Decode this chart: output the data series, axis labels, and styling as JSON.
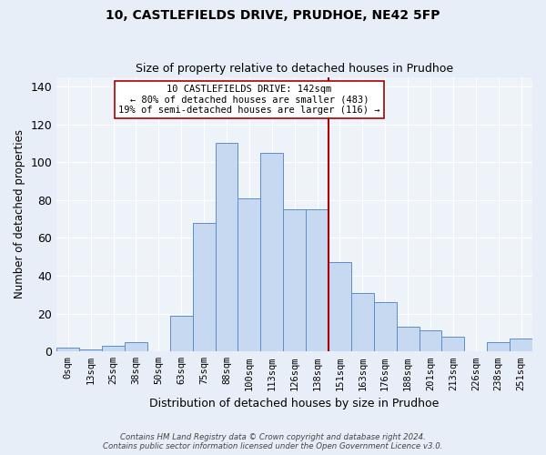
{
  "title": "10, CASTLEFIELDS DRIVE, PRUDHOE, NE42 5FP",
  "subtitle": "Size of property relative to detached houses in Prudhoe",
  "xlabel": "Distribution of detached houses by size in Prudhoe",
  "ylabel": "Number of detached properties",
  "bar_labels": [
    "0sqm",
    "13sqm",
    "25sqm",
    "38sqm",
    "50sqm",
    "63sqm",
    "75sqm",
    "88sqm",
    "100sqm",
    "113sqm",
    "126sqm",
    "138sqm",
    "151sqm",
    "163sqm",
    "176sqm",
    "188sqm",
    "201sqm",
    "213sqm",
    "226sqm",
    "238sqm",
    "251sqm"
  ],
  "bar_values": [
    2,
    1,
    3,
    5,
    0,
    19,
    68,
    110,
    81,
    105,
    75,
    75,
    47,
    31,
    26,
    13,
    11,
    8,
    0,
    5,
    7
  ],
  "bar_color": "#c6d9f1",
  "bar_edge_color": "#5b8fc9",
  "ref_line_index": 12,
  "annotation_title": "10 CASTLEFIELDS DRIVE: 142sqm",
  "annotation_line1": "← 80% of detached houses are smaller (483)",
  "annotation_line2": "19% of semi-detached houses are larger (116) →",
  "annotation_box_edge": "#aa0000",
  "ylim": [
    0,
    145
  ],
  "yticks": [
    0,
    20,
    40,
    60,
    80,
    100,
    120,
    140
  ],
  "footnote1": "Contains HM Land Registry data © Crown copyright and database right 2024.",
  "footnote2": "Contains public sector information licensed under the Open Government Licence v3.0.",
  "bg_color": "#e8eef7",
  "plot_bg_color": "#eef2f9"
}
